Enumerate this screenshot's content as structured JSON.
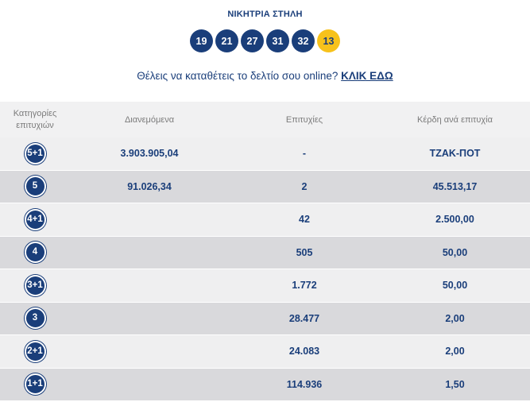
{
  "header": {
    "title": "ΝΙΚΗΤΡΙΑ ΣΤΗΛΗ",
    "numbers": [
      "19",
      "21",
      "27",
      "31",
      "32"
    ],
    "bonus": "13"
  },
  "online": {
    "text": "Θέλεις να καταθέτεις το δελτίο σου online?",
    "link": "ΚΛΙΚ ΕΔΩ"
  },
  "table": {
    "columns": [
      "Κατηγορίες επιτυχιών",
      "Διανεμόμενα",
      "Επιτυχίες",
      "Κέρδη ανά επιτυχία"
    ],
    "rows": [
      {
        "category": "5+1",
        "distributed": "3.903.905,04",
        "winners": "-",
        "prize": "ΤΖΑΚ-ΠΟΤ"
      },
      {
        "category": "5",
        "distributed": "91.026,34",
        "winners": "2",
        "prize": "45.513,17"
      },
      {
        "category": "4+1",
        "distributed": "",
        "winners": "42",
        "prize": "2.500,00"
      },
      {
        "category": "4",
        "distributed": "",
        "winners": "505",
        "prize": "50,00"
      },
      {
        "category": "3+1",
        "distributed": "",
        "winners": "1.772",
        "prize": "50,00"
      },
      {
        "category": "3",
        "distributed": "",
        "winners": "28.477",
        "prize": "2,00"
      },
      {
        "category": "2+1",
        "distributed": "",
        "winners": "24.083",
        "prize": "2,00"
      },
      {
        "category": "1+1",
        "distributed": "",
        "winners": "114.936",
        "prize": "1,50"
      }
    ]
  },
  "colors": {
    "primary": "#1a3e7a",
    "bonus": "#f7c21b",
    "row_light": "#efeff0",
    "row_dark": "#d9d9dc"
  }
}
